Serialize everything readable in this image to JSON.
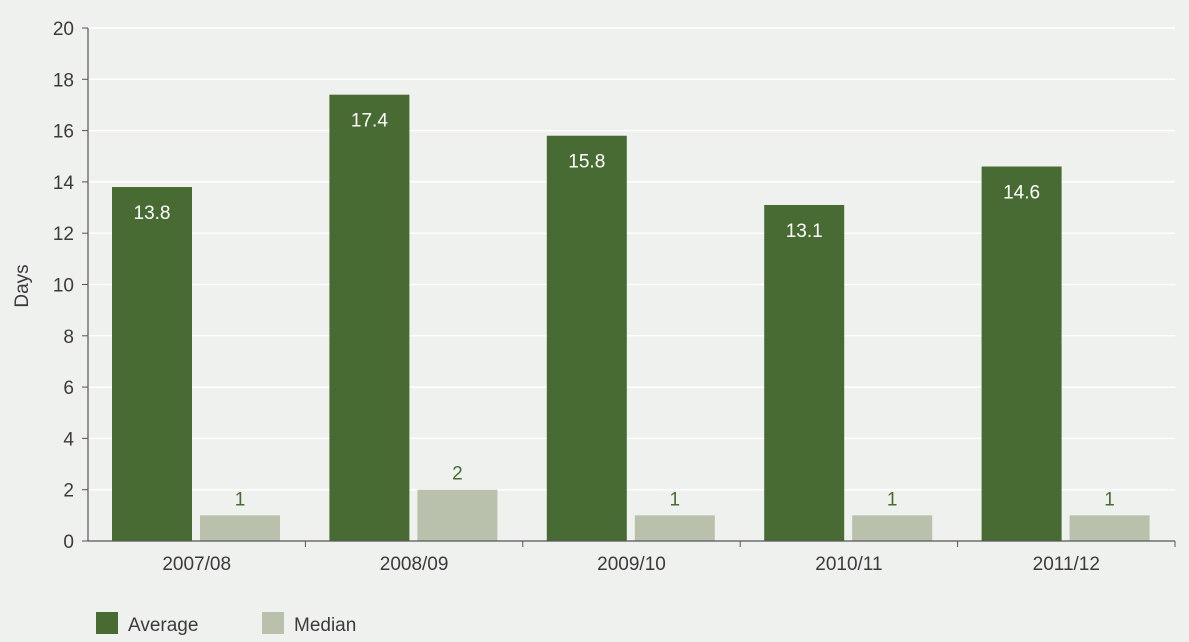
{
  "chart_data": {
    "type": "bar",
    "title": "",
    "xlabel": "",
    "ylabel": "Days",
    "ylim": [
      0,
      20
    ],
    "yticks": [
      0,
      2,
      4,
      6,
      8,
      10,
      12,
      14,
      16,
      18,
      20
    ],
    "grid": true,
    "legend_position": "bottom-left",
    "categories": [
      "2007/08",
      "2008/09",
      "2009/10",
      "2010/11",
      "2011/12"
    ],
    "series": [
      {
        "name": "Average",
        "values": [
          13.8,
          17.4,
          15.8,
          13.1,
          14.6
        ],
        "color": "#486b34",
        "label_color": "#ffffff"
      },
      {
        "name": "Median",
        "values": [
          1,
          2,
          1,
          1,
          1
        ],
        "color": "#b9c0ab",
        "label_color": "#486b34"
      }
    ],
    "data_labels": [
      [
        "13.8",
        "17.4",
        "15.8",
        "13.1",
        "14.6"
      ],
      [
        "1",
        "2",
        "1",
        "1",
        "1"
      ]
    ]
  }
}
